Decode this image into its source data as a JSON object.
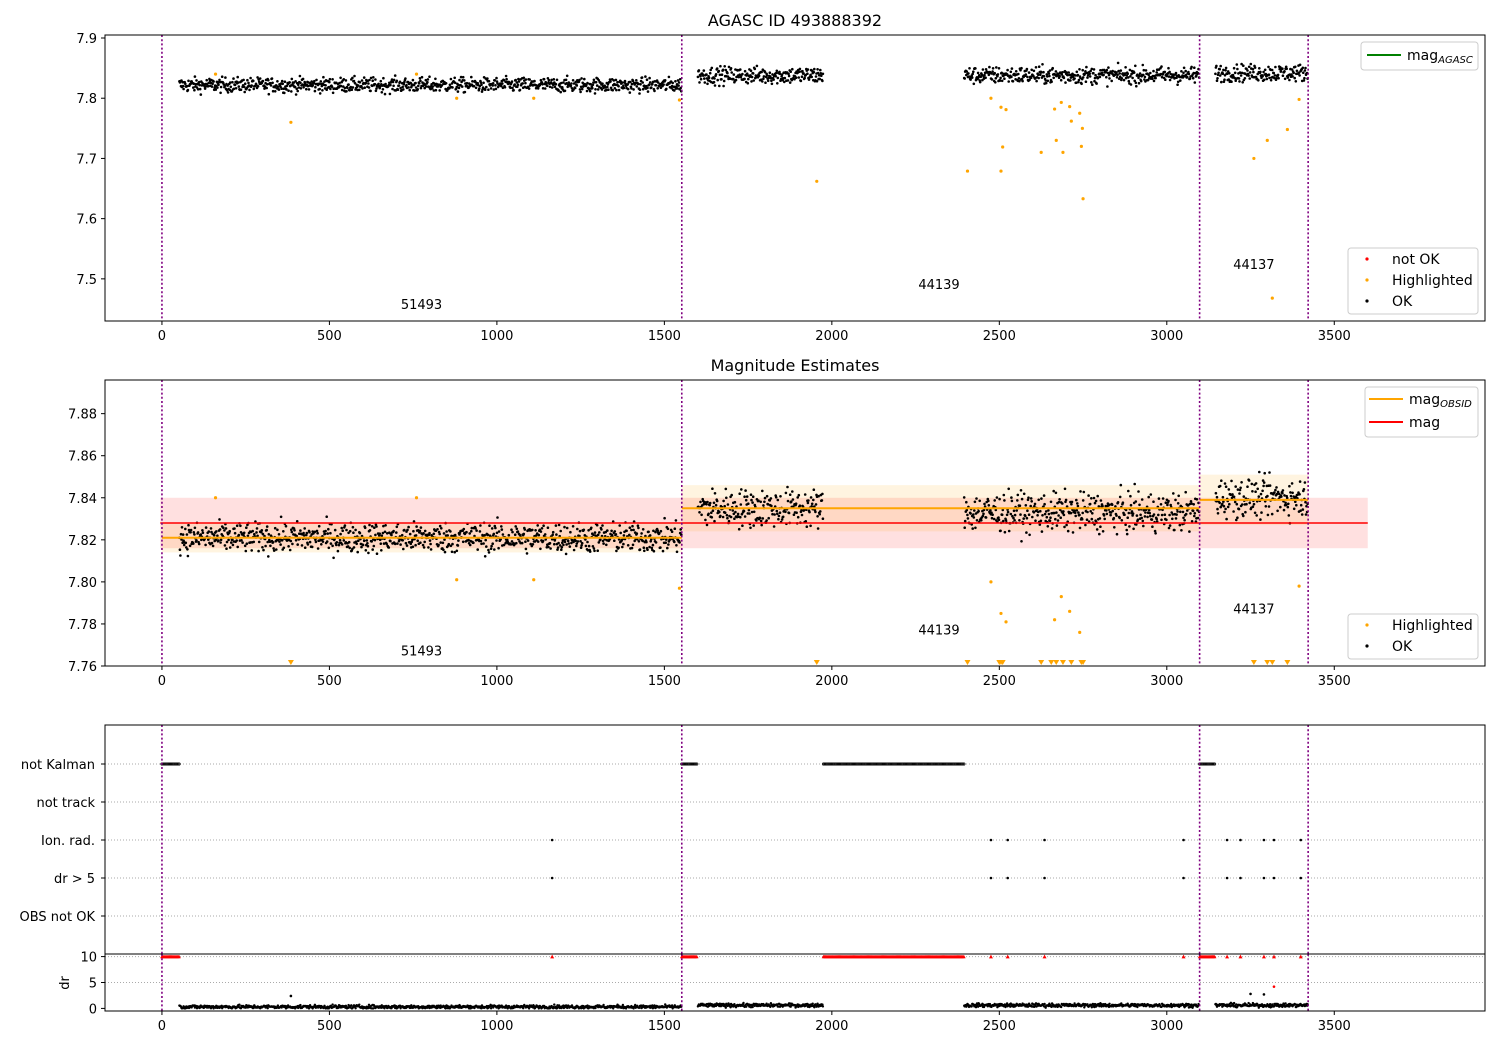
{
  "chart_data": [
    {
      "type": "scatter",
      "title": "AGASC ID 493888392",
      "xlim": [
        -170,
        3950
      ],
      "ylim": [
        7.43,
        7.905
      ],
      "xticks": [
        0,
        500,
        1000,
        1500,
        2000,
        2500,
        3000,
        3500
      ],
      "yticks": [
        7.5,
        7.6,
        7.7,
        7.8,
        7.9
      ],
      "legend_top": [
        {
          "name": "mag",
          "sub": "AGASC",
          "color": "#008000"
        }
      ],
      "legend_bottom": [
        {
          "name": "not OK",
          "color": "#ff0000"
        },
        {
          "name": "Highlighted",
          "color": "#ffa500"
        },
        {
          "name": "OK",
          "color": "#000000"
        }
      ],
      "obsid_boundaries": [
        0,
        1552,
        3098,
        3422
      ],
      "obsid_labels": [
        {
          "text": "51493",
          "x": 775,
          "y": 7.45
        },
        {
          "text": "44139",
          "x": 2320,
          "y": 7.483
        },
        {
          "text": "44137",
          "x": 3260,
          "y": 7.516
        }
      ],
      "ok_segments": [
        {
          "x0": 52,
          "x1": 1552,
          "mean": 7.822,
          "spread": 0.012
        },
        {
          "x0": 1600,
          "x1": 1975,
          "mean": 7.838,
          "spread": 0.014
        },
        {
          "x0": 2395,
          "x1": 3098,
          "mean": 7.838,
          "spread": 0.014
        },
        {
          "x0": 3145,
          "x1": 3422,
          "mean": 7.842,
          "spread": 0.014
        }
      ],
      "highlighted_points": [
        {
          "x": 160,
          "y": 7.84
        },
        {
          "x": 385,
          "y": 7.76
        },
        {
          "x": 760,
          "y": 7.84
        },
        {
          "x": 880,
          "y": 7.8
        },
        {
          "x": 1110,
          "y": 7.8
        },
        {
          "x": 1545,
          "y": 7.797
        },
        {
          "x": 1955,
          "y": 7.662
        },
        {
          "x": 2405,
          "y": 7.679
        },
        {
          "x": 2475,
          "y": 7.8
        },
        {
          "x": 2505,
          "y": 7.785
        },
        {
          "x": 2505,
          "y": 7.679
        },
        {
          "x": 2510,
          "y": 7.719
        },
        {
          "x": 2520,
          "y": 7.781
        },
        {
          "x": 2625,
          "y": 7.71
        },
        {
          "x": 2665,
          "y": 7.782
        },
        {
          "x": 2670,
          "y": 7.73
        },
        {
          "x": 2685,
          "y": 7.793
        },
        {
          "x": 2690,
          "y": 7.71
        },
        {
          "x": 2710,
          "y": 7.786
        },
        {
          "x": 2715,
          "y": 7.762
        },
        {
          "x": 2740,
          "y": 7.775
        },
        {
          "x": 2745,
          "y": 7.72
        },
        {
          "x": 2748,
          "y": 7.75
        },
        {
          "x": 2750,
          "y": 7.633
        },
        {
          "x": 3260,
          "y": 7.7
        },
        {
          "x": 3300,
          "y": 7.73
        },
        {
          "x": 3315,
          "y": 7.468
        },
        {
          "x": 3360,
          "y": 7.748
        },
        {
          "x": 3395,
          "y": 7.798
        }
      ]
    },
    {
      "type": "scatter",
      "title": "Magnitude Estimates",
      "xlim": [
        -170,
        3950
      ],
      "ylim": [
        7.76,
        7.896
      ],
      "xticks": [
        0,
        500,
        1000,
        1500,
        2000,
        2500,
        3000,
        3500
      ],
      "yticks": [
        7.76,
        7.78,
        7.8,
        7.82,
        7.84,
        7.86,
        7.88
      ],
      "legend_top": [
        {
          "name": "mag",
          "sub": "OBSID",
          "color": "#ffa500"
        },
        {
          "name": "mag",
          "sub": "",
          "color": "#ff0000"
        }
      ],
      "legend_bottom": [
        {
          "name": "Highlighted",
          "color": "#ffa500"
        },
        {
          "name": "OK",
          "color": "#000000"
        }
      ],
      "mag_line": {
        "y": 7.828,
        "x0": -5,
        "x1": 3600,
        "band": [
          7.816,
          7.84
        ]
      },
      "mag_obsid": [
        {
          "x0": 0,
          "x1": 1552,
          "y": 7.821,
          "band": [
            7.814,
            7.828
          ]
        },
        {
          "x0": 1552,
          "x1": 3098,
          "y": 7.835,
          "band": [
            7.824,
            7.846
          ]
        },
        {
          "x0": 3098,
          "x1": 3422,
          "y": 7.839,
          "band": [
            7.827,
            7.851
          ]
        }
      ],
      "obsid_boundaries": [
        0,
        1552,
        3098,
        3422
      ],
      "obsid_labels": [
        {
          "text": "51493",
          "x": 775,
          "y": 7.765
        },
        {
          "text": "44139",
          "x": 2320,
          "y": 7.775
        },
        {
          "text": "44137",
          "x": 3260,
          "y": 7.785
        }
      ],
      "ok_segments": [
        {
          "x0": 52,
          "x1": 1552,
          "mean": 7.821,
          "spread": 0.007
        },
        {
          "x0": 1600,
          "x1": 1975,
          "mean": 7.835,
          "spread": 0.009
        },
        {
          "x0": 2395,
          "x1": 3098,
          "mean": 7.833,
          "spread": 0.009
        },
        {
          "x0": 3145,
          "x1": 3422,
          "mean": 7.84,
          "spread": 0.009
        }
      ],
      "highlighted_points": [
        {
          "x": 160,
          "y": 7.84
        },
        {
          "x": 760,
          "y": 7.84
        },
        {
          "x": 880,
          "y": 7.801
        },
        {
          "x": 1110,
          "y": 7.801
        },
        {
          "x": 1545,
          "y": 7.797
        },
        {
          "x": 2475,
          "y": 7.8
        },
        {
          "x": 2505,
          "y": 7.785
        },
        {
          "x": 2520,
          "y": 7.781
        },
        {
          "x": 2665,
          "y": 7.782
        },
        {
          "x": 2685,
          "y": 7.793
        },
        {
          "x": 2710,
          "y": 7.786
        },
        {
          "x": 2740,
          "y": 7.776
        },
        {
          "x": 3395,
          "y": 7.798
        }
      ],
      "clipped_markers_x": [
        385,
        1955,
        2405,
        2500,
        2505,
        2510,
        2625,
        2655,
        2670,
        2690,
        2715,
        2745,
        2750,
        3260,
        3300,
        3315,
        3360
      ]
    },
    {
      "type": "scatter",
      "xlim": [
        -170,
        3950
      ],
      "categories": [
        "not Kalman",
        "not track",
        "Ion. rad.",
        "dr > 5",
        "OBS not OK"
      ],
      "obsid_boundaries": [
        0,
        1552,
        3098,
        3422
      ],
      "not_kalman_ranges": [
        [
          0,
          52
        ],
        [
          1552,
          1600
        ],
        [
          1975,
          2395
        ],
        [
          3098,
          3145
        ]
      ],
      "ion_rad_x": [
        1165,
        2475,
        2525,
        2635,
        3050,
        3180,
        3220,
        3290,
        3320,
        3400
      ],
      "dr_gt5_x": [
        1165,
        2475,
        2525,
        2635,
        3050,
        3180,
        3220,
        3290,
        3320,
        3400
      ]
    },
    {
      "type": "scatter",
      "xlim": [
        -170,
        3950
      ],
      "ylabel": "dr",
      "ylim": [
        -0.5,
        10.5
      ],
      "yticks": [
        0,
        5,
        10
      ],
      "xticks": [
        0,
        500,
        1000,
        1500,
        2000,
        2500,
        3000,
        3500
      ],
      "obsid_boundaries": [
        0,
        1552,
        3098,
        3422
      ],
      "capped_ranges": [
        [
          0,
          52
        ],
        [
          1552,
          1600
        ],
        [
          1975,
          2395
        ],
        [
          3098,
          3145
        ]
      ],
      "capped_points_x": [
        1165,
        2475,
        2525,
        2635,
        3050,
        3180,
        3220,
        3290,
        3320,
        3400
      ],
      "dr_segments": [
        {
          "x0": 52,
          "x1": 1552,
          "mean": 0.3
        },
        {
          "x0": 1600,
          "x1": 1975,
          "mean": 0.6
        },
        {
          "x0": 2395,
          "x1": 3098,
          "mean": 0.6
        },
        {
          "x0": 3145,
          "x1": 3422,
          "mean": 0.6
        }
      ],
      "dr_outliers": [
        {
          "x": 385,
          "y": 2.4
        },
        {
          "x": 3250,
          "y": 2.8
        },
        {
          "x": 3290,
          "y": 2.7
        },
        {
          "x": 3320,
          "y": 4.2
        }
      ]
    }
  ]
}
